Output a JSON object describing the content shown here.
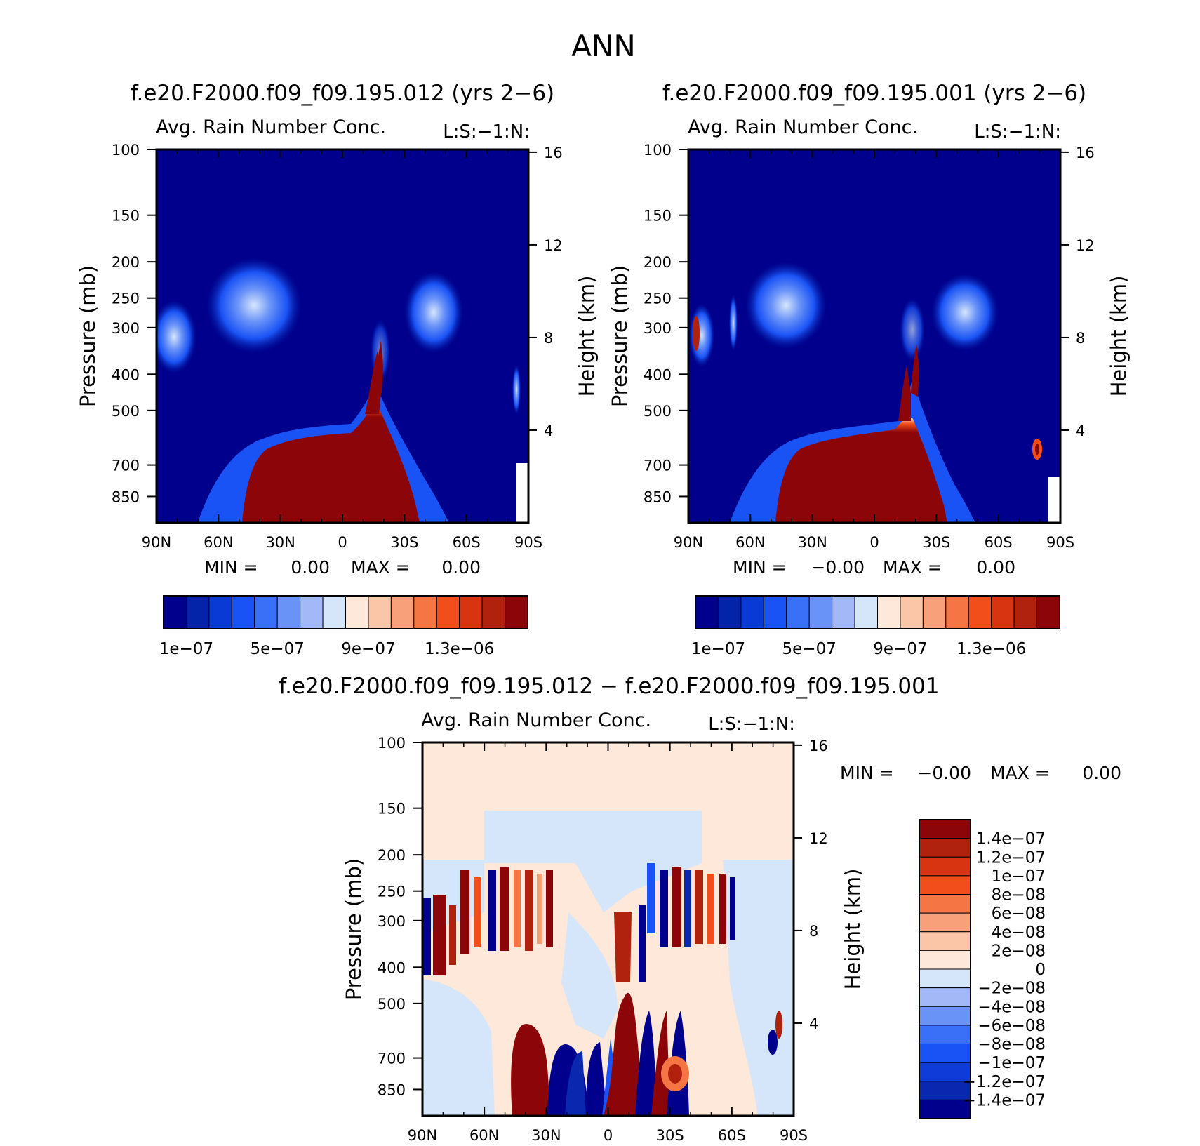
{
  "page_title": "ANN",
  "colors": {
    "seq": [
      "#00008c",
      "#0323a8",
      "#0a3ad6",
      "#1a53f5",
      "#3a6ff7",
      "#6a93f8",
      "#a3b9f7",
      "#d6e6fa",
      "#fde8da",
      "#fbc6a8",
      "#f8a07a",
      "#f57545",
      "#f24e1b",
      "#d83412",
      "#b0220d",
      "#8c0508"
    ],
    "diff": [
      "#00008c",
      "#0a27b0",
      "#0f3cd9",
      "#1a53f5",
      "#3a6ff7",
      "#6a93f8",
      "#a3b9f7",
      "#d6e6fa",
      "#fde8da",
      "#fbc6a8",
      "#f8a07a",
      "#f57545",
      "#f24e1b",
      "#d83412",
      "#b0220d",
      "#8c0508"
    ]
  },
  "chart_data": [
    {
      "type": "heatmap",
      "title": "f.e20.F2000.f09_f09.195.012 (yrs 2-6)",
      "subtitle": "Avg. Rain Number Conc.",
      "corner_label": "L:S:-1:N:",
      "ylabel": "Pressure (mb)",
      "ylabel_right": "Height (km)",
      "x_ticks": [
        "90N",
        "60N",
        "30N",
        "0",
        "30S",
        "60S",
        "90S"
      ],
      "y_ticks": [
        100,
        150,
        200,
        250,
        300,
        400,
        500,
        700,
        850
      ],
      "y_ticks_right": [
        16,
        12,
        8,
        4
      ],
      "ylim": [
        100,
        1000
      ],
      "log_scale_y": true,
      "min_label": "MIN =",
      "min_value": "0.00",
      "max_label": "MAX =",
      "max_value": "0.00",
      "colorbar_labels": [
        "1e-07",
        "5e-07",
        "9e-07",
        "1.3e-06"
      ]
    },
    {
      "type": "heatmap",
      "title": "f.e20.F2000.f09_f09.195.001 (yrs 2-6)",
      "subtitle": "Avg. Rain Number Conc.",
      "corner_label": "L:S:-1:N:",
      "ylabel": "Pressure (mb)",
      "ylabel_right": "Height (km)",
      "x_ticks": [
        "90N",
        "60N",
        "30N",
        "0",
        "30S",
        "60S",
        "90S"
      ],
      "y_ticks": [
        100,
        150,
        200,
        250,
        300,
        400,
        500,
        700,
        850
      ],
      "y_ticks_right": [
        16,
        12,
        8,
        4
      ],
      "ylim": [
        100,
        1000
      ],
      "log_scale_y": true,
      "min_label": "MIN =",
      "min_value": "-0.00",
      "max_label": "MAX =",
      "max_value": "0.00",
      "colorbar_labels": [
        "1e-07",
        "5e-07",
        "9e-07",
        "1.3e-06"
      ]
    },
    {
      "type": "heatmap",
      "title": "f.e20.F2000.f09_f09.195.012 - f.e20.F2000.f09_f09.195.001",
      "subtitle": "Avg. Rain Number Conc.",
      "corner_label": "L:S:-1:N:",
      "ylabel": "Pressure (mb)",
      "ylabel_right": "Height (km)",
      "x_ticks": [
        "90N",
        "60N",
        "30N",
        "0",
        "30S",
        "60S",
        "90S"
      ],
      "y_ticks": [
        100,
        150,
        200,
        250,
        300,
        400,
        500,
        700,
        850
      ],
      "y_ticks_right": [
        16,
        12,
        8,
        4
      ],
      "ylim": [
        100,
        1000
      ],
      "log_scale_y": true,
      "min_label": "MIN =",
      "min_value": "-0.00",
      "max_label": "MAX =",
      "max_value": "0.00",
      "colorbar_labels": [
        "1.4e-07",
        "1.2e-07",
        "1e-07",
        "8e-08",
        "6e-08",
        "4e-08",
        "2e-08",
        "0",
        "-2e-08",
        "-4e-08",
        "-6e-08",
        "-8e-08",
        "-1e-07",
        "-1.2e-07",
        "-1.4e-07"
      ]
    }
  ]
}
